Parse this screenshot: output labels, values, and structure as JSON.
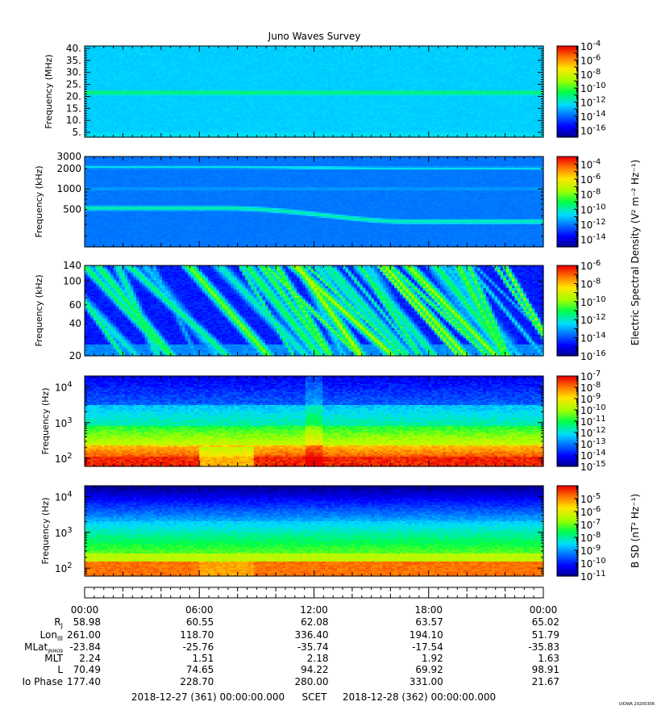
{
  "title": "Juno Waves Survey",
  "corner_tag": "UIOWA 20200306",
  "chart_data": [
    {
      "type": "heatmap",
      "panel": "hfwbr-high",
      "ylabel": "Frequency (MHz)",
      "y_scale": "linear",
      "ylim": [
        3,
        41
      ],
      "yticks": [
        5,
        10,
        15,
        20,
        25,
        30,
        35,
        40
      ],
      "ytick_labels": [
        "5.",
        "10.",
        "15.",
        "20.",
        "25.",
        "30.",
        "35.",
        "40."
      ],
      "colorbar": {
        "scale": "log",
        "exp_range": [
          -17,
          -4
        ],
        "tick_exponents": [
          -4,
          -6,
          -8,
          -10,
          -12,
          -14,
          -16
        ]
      },
      "features": [
        {
          "desc_band_center_mhz": 21.5,
          "level_exp": -11
        }
      ],
      "background_level_exp": -12.5
    },
    {
      "type": "heatmap",
      "panel": "hfr-low",
      "ylabel": "Frequency (kHz)",
      "y_scale": "log",
      "ylim": [
        140,
        3000
      ],
      "yticks": [
        500,
        1000,
        2000,
        3000
      ],
      "colorbar": {
        "scale": "log",
        "exp_range": [
          -15,
          -3
        ],
        "tick_exponents": [
          -4,
          -6,
          -8,
          -10,
          -12,
          -14
        ],
        "label": "Electric Spectral Density (V² m⁻² Hz⁻¹)"
      },
      "features": [
        {
          "band_khz_start": 520,
          "band_khz_end": 330,
          "level_exp": -10
        },
        {
          "band_khz_start": 2100,
          "band_khz_end": 2000,
          "level_exp": -10.5
        }
      ],
      "background_level_exp": -12
    },
    {
      "type": "heatmap",
      "panel": "lfr-high",
      "ylabel": "Frequency (kHz)",
      "y_scale": "log",
      "ylim": [
        20,
        140
      ],
      "yticks": [
        20,
        40,
        60,
        100,
        140
      ],
      "colorbar": {
        "scale": "log",
        "exp_range": [
          -16,
          -6
        ],
        "tick_exponents": [
          -6,
          -8,
          -10,
          -12,
          -14,
          -16
        ]
      },
      "background_level_exp": -14.5
    },
    {
      "type": "heatmap",
      "panel": "lfr-e-low",
      "ylabel": "Frequency (Hz)",
      "y_scale": "log",
      "ylim": [
        60,
        20000
      ],
      "yticks": [
        100,
        1000,
        10000
      ],
      "colorbar": {
        "scale": "log",
        "exp_range": [
          -15,
          -7
        ],
        "tick_exponents": [
          -7,
          -8,
          -9,
          -10,
          -11,
          -12,
          -13,
          -14,
          -15
        ]
      },
      "background_level_exp": -12
    },
    {
      "type": "heatmap",
      "panel": "lfr-b",
      "ylabel": "Frequency (Hz)",
      "y_scale": "log",
      "ylim": [
        60,
        20000
      ],
      "yticks": [
        100,
        1000,
        10000
      ],
      "colorbar": {
        "scale": "log",
        "exp_range": [
          -11,
          -4
        ],
        "tick_exponents": [
          -5,
          -6,
          -7,
          -8,
          -9,
          -10,
          -11
        ],
        "label": "B SD (nT² Hz⁻¹)"
      },
      "background_level_exp": -8
    }
  ],
  "time_axis": {
    "hours_range": [
      0,
      24
    ],
    "tick_labels": [
      "00:00",
      "06:00",
      "12:00",
      "18:00",
      "00:00"
    ]
  },
  "ephemeris": {
    "rows": [
      {
        "name": "R",
        "sub": "J",
        "values": [
          "58.98",
          "60.55",
          "62.08",
          "63.57",
          "65.02"
        ]
      },
      {
        "name": "Lon",
        "sub": "III",
        "values": [
          "261.00",
          "118.70",
          "336.40",
          "194.10",
          "51.79"
        ]
      },
      {
        "name": "MLat",
        "sub": "JRM09",
        "values": [
          "-23.84",
          "-25.76",
          "-35.74",
          "-17.54",
          "-35.83"
        ]
      },
      {
        "name": "MLT",
        "sub": "",
        "values": [
          "2.24",
          "1.51",
          "2.18",
          "1.92",
          "1.63"
        ]
      },
      {
        "name": "L",
        "sub": "",
        "values": [
          "70.49",
          "74.65",
          "94.22",
          "69.92",
          "98.91"
        ]
      },
      {
        "name": "Io Phase",
        "sub": "",
        "values": [
          "177.40",
          "228.70",
          "280.00",
          "331.00",
          "21.67"
        ]
      }
    ]
  },
  "footer": {
    "start": "2018-12-27 (361) 00:00:00.000",
    "scet": "SCET",
    "end": "2018-12-28 (362) 00:00:00.000"
  }
}
